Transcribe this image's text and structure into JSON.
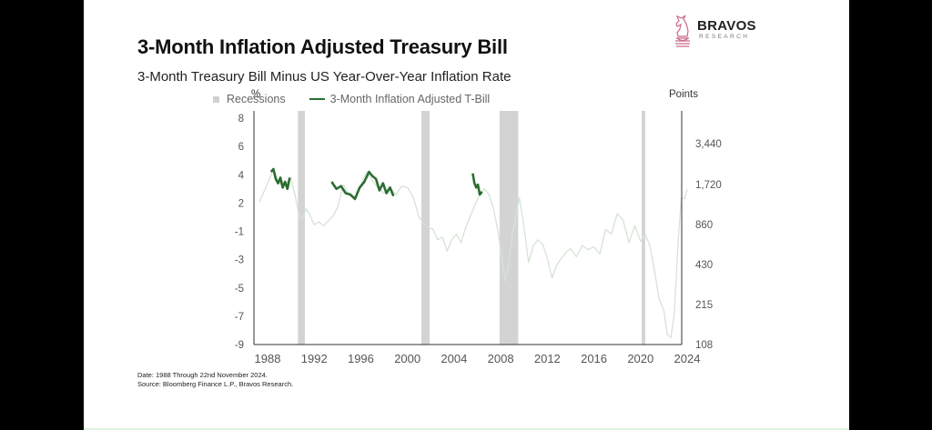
{
  "logo": {
    "icon": "knight-chess-piece-icon",
    "name": "BRAVOS",
    "sub": "RESEARCH",
    "icon_color": "#c8698a"
  },
  "header": {
    "title": "3-Month Inflation Adjusted Treasury Bill",
    "subtitle": "3-Month Treasury Bill Minus US Year-Over-Year Inflation Rate"
  },
  "footer": {
    "line1": "Date: 1988 Through 22nd November 2024.",
    "line2": "Source: Bloomberg Finance L.P., Bravos Research."
  },
  "chart_data": {
    "type": "line",
    "title": "3-Month Inflation Adjusted Treasury Bill",
    "subtitle": "3-Month Treasury Bill Minus US Year-Over-Year Inflation Rate",
    "xlabel": "",
    "ylabel": "%",
    "y2label": "Points",
    "xlim": [
      1987.3,
      2024.0
    ],
    "x_ticks": [
      1988,
      1992,
      1996,
      2000,
      2004,
      2008,
      2012,
      2016,
      2020,
      2024
    ],
    "y_ticks": [
      8,
      6,
      4,
      2,
      -1,
      -3,
      -5,
      -7,
      -9
    ],
    "y2_ticks": [
      "3,440",
      "1,720",
      "860",
      "430",
      "215",
      "108"
    ],
    "y2_tick_values": [
      3440,
      1720,
      860,
      430,
      215,
      108
    ],
    "grid": false,
    "legend": {
      "position": "top",
      "entries": [
        {
          "name": "Recessions",
          "color": "#d3d3d3",
          "type": "rect"
        },
        {
          "name": "3-Month Inflation Adjusted T-Bill",
          "color": "#2b6d31",
          "type": "line"
        }
      ]
    },
    "recessions": [
      {
        "start": 1990.6,
        "end": 1991.2
      },
      {
        "start": 2001.2,
        "end": 2001.9
      },
      {
        "start": 2007.9,
        "end": 2009.5
      },
      {
        "start": 2020.1,
        "end": 2020.4
      }
    ],
    "series": [
      {
        "name": "Background series",
        "color": "#d6e3d6",
        "x": [
          1987.3,
          1987.8,
          1988.2,
          1988.5,
          1988.9,
          1989.3,
          1989.7,
          1990.0,
          1990.4,
          1990.7,
          1991.0,
          1991.3,
          1991.6,
          1992.0,
          1992.4,
          1992.8,
          1993.2,
          1993.6,
          1994.0,
          1994.5,
          1995.0,
          1995.5,
          1996.0,
          1996.5,
          1997.0,
          1997.5,
          1998.0,
          1998.5,
          1999.0,
          1999.5,
          2000.0,
          2000.5,
          2001.0,
          2001.4,
          2001.8,
          2002.2,
          2002.6,
          2003.0,
          2003.4,
          2003.8,
          2004.2,
          2004.6,
          2005.0,
          2005.4,
          2005.8,
          2006.2,
          2006.6,
          2007.0,
          2007.4,
          2007.8,
          2008.1,
          2008.4,
          2008.7,
          2009.0,
          2009.3,
          2009.6,
          2010.0,
          2010.4,
          2010.8,
          2011.2,
          2011.6,
          2012.0,
          2012.4,
          2012.8,
          2013.2,
          2013.6,
          2014.0,
          2014.5,
          2015.0,
          2015.5,
          2016.0,
          2016.5,
          2017.0,
          2017.5,
          2018.0,
          2018.5,
          2019.0,
          2019.5,
          2020.0,
          2020.4,
          2020.8,
          2021.2,
          2021.6,
          2022.0,
          2022.3,
          2022.6,
          2022.9,
          2023.2,
          2023.5,
          2023.8,
          2024.0
        ],
        "y": [
          2.1,
          3.0,
          3.8,
          4.4,
          3.6,
          3.2,
          3.5,
          3.8,
          2.4,
          0.6,
          0.3,
          1.4,
          0.8,
          -0.3,
          0.0,
          -0.4,
          0.1,
          0.6,
          1.5,
          3.3,
          2.6,
          2.2,
          3.3,
          4.2,
          3.6,
          3.0,
          2.7,
          3.1,
          2.6,
          3.2,
          3.1,
          2.4,
          0.5,
          -0.2,
          -0.6,
          -0.8,
          -1.6,
          -1.4,
          -2.4,
          -1.6,
          -1.2,
          -1.8,
          -0.6,
          0.6,
          1.8,
          2.6,
          3.0,
          2.6,
          1.3,
          -1.1,
          -3.0,
          -4.5,
          -3.2,
          -1.2,
          0.6,
          2.4,
          -0.5,
          -3.2,
          -2.0,
          -1.6,
          -1.9,
          -2.9,
          -4.3,
          -3.4,
          -2.9,
          -2.5,
          -2.2,
          -2.8,
          -2.0,
          -2.3,
          -2.1,
          -2.6,
          -0.8,
          -1.2,
          0.9,
          0.2,
          -1.8,
          -0.4,
          -1.7,
          -1.2,
          -2.0,
          -3.8,
          -5.8,
          -6.6,
          -8.3,
          -8.5,
          -6.8,
          -2.0,
          2.4,
          2.3,
          3.0
        ]
      },
      {
        "name": "3-Month Inflation Adjusted T-Bill (highlighted)",
        "color": "#2b6d31",
        "segments": [
          {
            "x": [
              1988.3,
              1988.5,
              1988.7,
              1988.9,
              1989.1,
              1989.3,
              1989.5,
              1989.7,
              1989.9
            ],
            "y": [
              4.2,
              4.4,
              3.7,
              3.4,
              3.8,
              3.1,
              3.5,
              3.0,
              3.8
            ]
          },
          {
            "x": [
              1993.5,
              1993.9,
              1994.3,
              1994.7,
              1995.1,
              1995.5,
              1995.9,
              1996.3,
              1996.7,
              1997.0,
              1997.3,
              1997.6,
              1997.9,
              1998.2,
              1998.5,
              1998.8
            ],
            "y": [
              3.5,
              3.0,
              3.2,
              2.7,
              2.6,
              2.3,
              3.1,
              3.5,
              4.2,
              3.9,
              3.7,
              2.9,
              3.4,
              2.7,
              3.1,
              2.5
            ]
          },
          {
            "x": [
              2005.6,
              2005.75,
              2005.9,
              2006.05,
              2006.2,
              2006.4
            ],
            "y": [
              4.1,
              3.4,
              3.1,
              3.3,
              2.6,
              2.8
            ]
          }
        ]
      }
    ]
  }
}
